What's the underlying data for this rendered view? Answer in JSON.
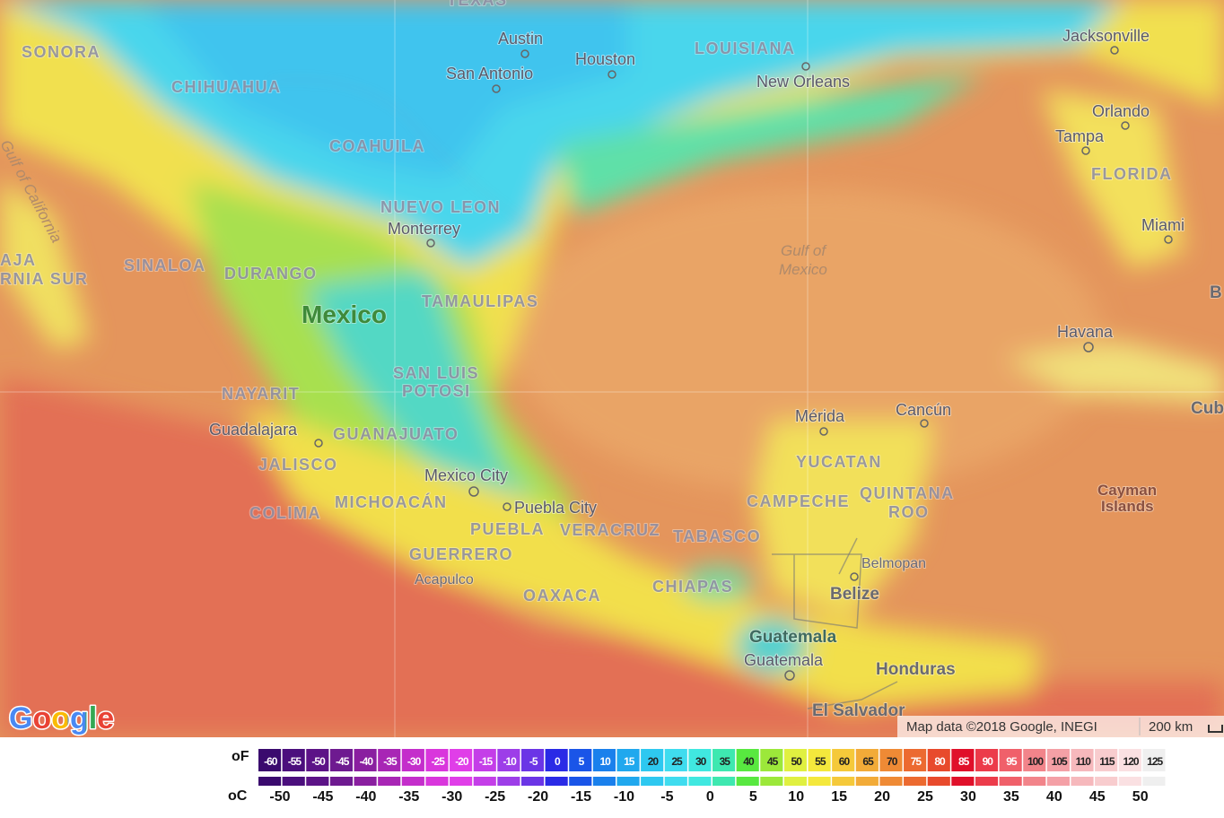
{
  "map": {
    "labels": [
      "TEXAS",
      "Austin",
      "Houston",
      "San Antonio",
      "LOUISIANA",
      "New Orleans",
      "Jacksonville",
      "Orlando",
      "Tampa",
      "FLORIDA",
      "Miami",
      "SONORA",
      "CHIHUAHUA",
      "COAHUILA",
      "NUEVO LEON",
      "Monterrey",
      "Gulf of California",
      "AJA",
      "RNIA SUR",
      "SINALOA",
      "DURANGO",
      "Mexico",
      "TAMAULIPAS",
      "Gulf of",
      "Mexico",
      "B",
      "Havana",
      "Cub",
      "NAYARIT",
      "SAN LUIS",
      "POTOSI",
      "Mérida",
      "Cancún",
      "Guadalajara",
      "GUANAJUATO",
      "YUCATAN",
      "JALISCO",
      "Mexico City",
      "CAMPECHE",
      "QUINTANA",
      "ROO",
      "Cayman",
      "Islands",
      "COLIMA",
      "MICHOACÁN",
      "Puebla City",
      "PUEBLA",
      "VERACRUZ",
      "TABASCO",
      "GUERRERO",
      "Belmopan",
      "Acapulco",
      "OAXACA",
      "CHIAPAS",
      "Belize",
      "Guatemala",
      "Guatemala",
      "Honduras",
      "El Salvador"
    ],
    "logo": "Google",
    "attribution": "Map data ©2018 Google, INEGI",
    "scale": "200 km"
  },
  "legend": {
    "f_unit": "oF",
    "c_unit": "oC",
    "f_values": [
      -60,
      -55,
      -50,
      -45,
      -40,
      -35,
      -30,
      -25,
      -20,
      -15,
      -10,
      -5,
      0,
      5,
      10,
      15,
      20,
      25,
      30,
      35,
      40,
      45,
      50,
      55,
      60,
      65,
      70,
      75,
      80,
      85,
      90,
      95,
      100,
      105,
      110,
      115,
      120,
      125
    ],
    "colors": [
      "#3a0a6e",
      "#4b0f7d",
      "#5c1387",
      "#6e1a90",
      "#8a1fa0",
      "#a826b5",
      "#c42ecb",
      "#d936dc",
      "#e03ee8",
      "#c43ee8",
      "#9d3ee8",
      "#6b35e6",
      "#2a2ae6",
      "#1a55e8",
      "#1a80ec",
      "#20a8ee",
      "#2ec8f0",
      "#3fdcef",
      "#40e8e0",
      "#3ee8b0",
      "#58e840",
      "#9ce83a",
      "#e0f040",
      "#f4e83c",
      "#f5c93a",
      "#f2ab38",
      "#ef8a35",
      "#ec6a30",
      "#e84a2c",
      "#e0102a",
      "#ec3b4a",
      "#f0606a",
      "#f2848a",
      "#f4a0a6",
      "#f6b8bc",
      "#f8ccce",
      "#fae0e2",
      "#efefef"
    ],
    "c_values": [
      -50,
      -45,
      -40,
      -35,
      -30,
      -25,
      -20,
      -15,
      -10,
      -5,
      0,
      5,
      10,
      15,
      20,
      25,
      30,
      35,
      40,
      45,
      50
    ]
  }
}
